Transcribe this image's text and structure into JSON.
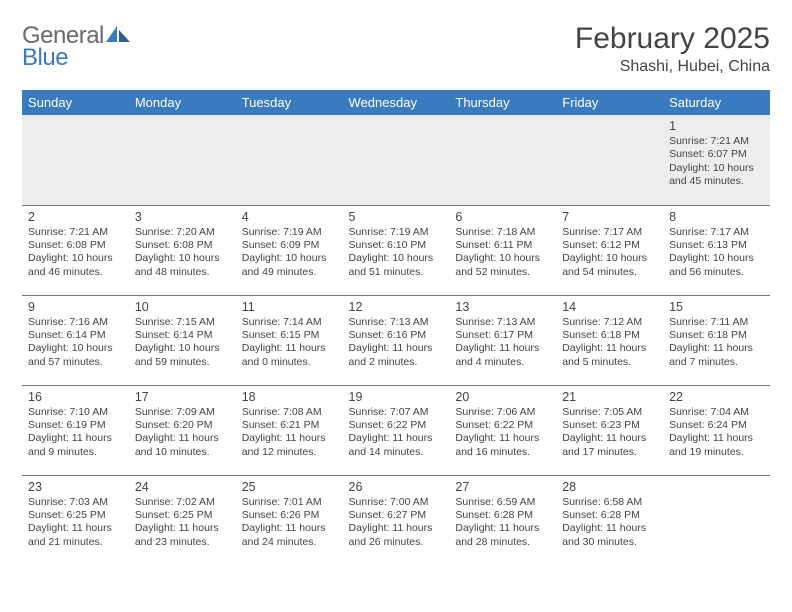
{
  "logo": {
    "general": "General",
    "blue": "Blue"
  },
  "title": "February 2025",
  "location": "Shashi, Hubei, China",
  "colors": {
    "header_bg": "#3a7bbf",
    "header_fg": "#ffffff",
    "firstrow_bg": "#ededed",
    "rule": "#7a7a7a",
    "text": "#444444",
    "logo_gray": "#6a6a6a",
    "logo_blue": "#3a7bbf"
  },
  "weekdays": [
    "Sunday",
    "Monday",
    "Tuesday",
    "Wednesday",
    "Thursday",
    "Friday",
    "Saturday"
  ],
  "weeks": [
    [
      null,
      null,
      null,
      null,
      null,
      null,
      {
        "n": "1",
        "sr": "Sunrise: 7:21 AM",
        "ss": "Sunset: 6:07 PM",
        "dl": "Daylight: 10 hours and 45 minutes."
      }
    ],
    [
      {
        "n": "2",
        "sr": "Sunrise: 7:21 AM",
        "ss": "Sunset: 6:08 PM",
        "dl": "Daylight: 10 hours and 46 minutes."
      },
      {
        "n": "3",
        "sr": "Sunrise: 7:20 AM",
        "ss": "Sunset: 6:08 PM",
        "dl": "Daylight: 10 hours and 48 minutes."
      },
      {
        "n": "4",
        "sr": "Sunrise: 7:19 AM",
        "ss": "Sunset: 6:09 PM",
        "dl": "Daylight: 10 hours and 49 minutes."
      },
      {
        "n": "5",
        "sr": "Sunrise: 7:19 AM",
        "ss": "Sunset: 6:10 PM",
        "dl": "Daylight: 10 hours and 51 minutes."
      },
      {
        "n": "6",
        "sr": "Sunrise: 7:18 AM",
        "ss": "Sunset: 6:11 PM",
        "dl": "Daylight: 10 hours and 52 minutes."
      },
      {
        "n": "7",
        "sr": "Sunrise: 7:17 AM",
        "ss": "Sunset: 6:12 PM",
        "dl": "Daylight: 10 hours and 54 minutes."
      },
      {
        "n": "8",
        "sr": "Sunrise: 7:17 AM",
        "ss": "Sunset: 6:13 PM",
        "dl": "Daylight: 10 hours and 56 minutes."
      }
    ],
    [
      {
        "n": "9",
        "sr": "Sunrise: 7:16 AM",
        "ss": "Sunset: 6:14 PM",
        "dl": "Daylight: 10 hours and 57 minutes."
      },
      {
        "n": "10",
        "sr": "Sunrise: 7:15 AM",
        "ss": "Sunset: 6:14 PM",
        "dl": "Daylight: 10 hours and 59 minutes."
      },
      {
        "n": "11",
        "sr": "Sunrise: 7:14 AM",
        "ss": "Sunset: 6:15 PM",
        "dl": "Daylight: 11 hours and 0 minutes."
      },
      {
        "n": "12",
        "sr": "Sunrise: 7:13 AM",
        "ss": "Sunset: 6:16 PM",
        "dl": "Daylight: 11 hours and 2 minutes."
      },
      {
        "n": "13",
        "sr": "Sunrise: 7:13 AM",
        "ss": "Sunset: 6:17 PM",
        "dl": "Daylight: 11 hours and 4 minutes."
      },
      {
        "n": "14",
        "sr": "Sunrise: 7:12 AM",
        "ss": "Sunset: 6:18 PM",
        "dl": "Daylight: 11 hours and 5 minutes."
      },
      {
        "n": "15",
        "sr": "Sunrise: 7:11 AM",
        "ss": "Sunset: 6:18 PM",
        "dl": "Daylight: 11 hours and 7 minutes."
      }
    ],
    [
      {
        "n": "16",
        "sr": "Sunrise: 7:10 AM",
        "ss": "Sunset: 6:19 PM",
        "dl": "Daylight: 11 hours and 9 minutes."
      },
      {
        "n": "17",
        "sr": "Sunrise: 7:09 AM",
        "ss": "Sunset: 6:20 PM",
        "dl": "Daylight: 11 hours and 10 minutes."
      },
      {
        "n": "18",
        "sr": "Sunrise: 7:08 AM",
        "ss": "Sunset: 6:21 PM",
        "dl": "Daylight: 11 hours and 12 minutes."
      },
      {
        "n": "19",
        "sr": "Sunrise: 7:07 AM",
        "ss": "Sunset: 6:22 PM",
        "dl": "Daylight: 11 hours and 14 minutes."
      },
      {
        "n": "20",
        "sr": "Sunrise: 7:06 AM",
        "ss": "Sunset: 6:22 PM",
        "dl": "Daylight: 11 hours and 16 minutes."
      },
      {
        "n": "21",
        "sr": "Sunrise: 7:05 AM",
        "ss": "Sunset: 6:23 PM",
        "dl": "Daylight: 11 hours and 17 minutes."
      },
      {
        "n": "22",
        "sr": "Sunrise: 7:04 AM",
        "ss": "Sunset: 6:24 PM",
        "dl": "Daylight: 11 hours and 19 minutes."
      }
    ],
    [
      {
        "n": "23",
        "sr": "Sunrise: 7:03 AM",
        "ss": "Sunset: 6:25 PM",
        "dl": "Daylight: 11 hours and 21 minutes."
      },
      {
        "n": "24",
        "sr": "Sunrise: 7:02 AM",
        "ss": "Sunset: 6:25 PM",
        "dl": "Daylight: 11 hours and 23 minutes."
      },
      {
        "n": "25",
        "sr": "Sunrise: 7:01 AM",
        "ss": "Sunset: 6:26 PM",
        "dl": "Daylight: 11 hours and 24 minutes."
      },
      {
        "n": "26",
        "sr": "Sunrise: 7:00 AM",
        "ss": "Sunset: 6:27 PM",
        "dl": "Daylight: 11 hours and 26 minutes."
      },
      {
        "n": "27",
        "sr": "Sunrise: 6:59 AM",
        "ss": "Sunset: 6:28 PM",
        "dl": "Daylight: 11 hours and 28 minutes."
      },
      {
        "n": "28",
        "sr": "Sunrise: 6:58 AM",
        "ss": "Sunset: 6:28 PM",
        "dl": "Daylight: 11 hours and 30 minutes."
      },
      null
    ]
  ]
}
